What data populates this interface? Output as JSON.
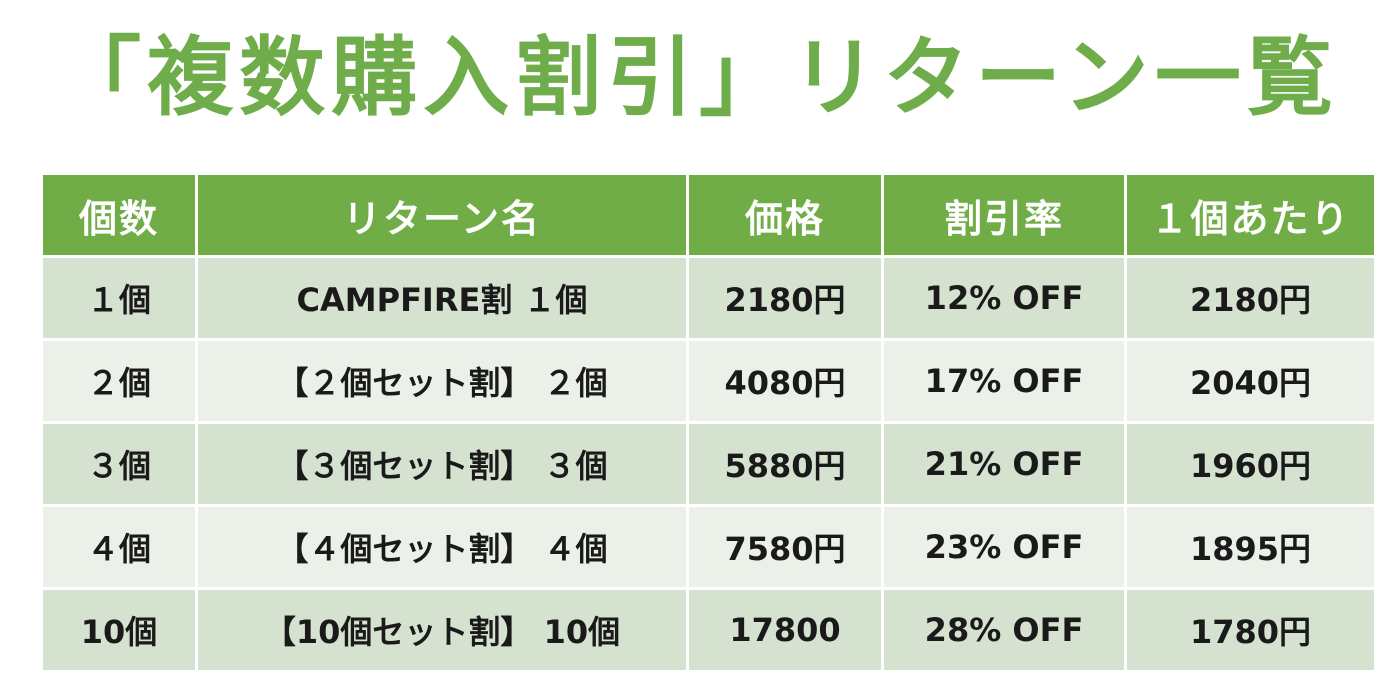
{
  "title": "「複数購入割引」リターン一覧",
  "table": {
    "headers": [
      "個数",
      "リターン名",
      "価格",
      "割引率",
      "１個あたり"
    ],
    "rows": [
      [
        "１個",
        "CAMPFIRE割 １個",
        "2180円",
        "12% OFF",
        "2180円"
      ],
      [
        "２個",
        "【２個セット割】 ２個",
        "4080円",
        "17% OFF",
        "2040円"
      ],
      [
        "３個",
        "【３個セット割】 ３個",
        "5880円",
        "21% OFF",
        "1960円"
      ],
      [
        "４個",
        "【４個セット割】 ４個",
        "7580円",
        "23% OFF",
        "1895円"
      ],
      [
        "10個",
        "【10個セット割】 10個",
        "17800",
        "28% OFF",
        "1780円"
      ]
    ]
  },
  "colors": {
    "accent": "#70ad47",
    "row_dark": "#d6e2d0",
    "row_light": "#ebf1e8"
  }
}
